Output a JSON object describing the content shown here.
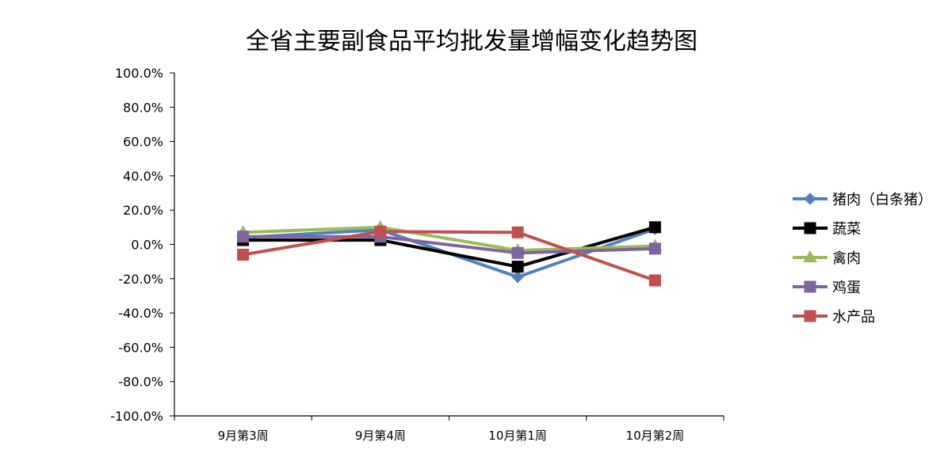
{
  "chart_data": {
    "type": "line",
    "title": "全省主要副食品平均批发量增幅变化趋势图",
    "categories": [
      "9月第3周",
      "9月第4周",
      "10月第1周",
      "10月第2周"
    ],
    "ylim": [
      -100,
      100
    ],
    "ytick_step": 20,
    "ytick_labels": [
      "100.0%",
      "80.0%",
      "60.0%",
      "40.0%",
      "20.0%",
      "0.0%",
      "-20.0%",
      "-40.0%",
      "-60.0%",
      "-80.0%",
      "-100.0%"
    ],
    "y_unit": "%",
    "grid": false,
    "legend_position": "right",
    "series": [
      {
        "name": "猪肉（白条猪）",
        "values": [
          4.0,
          8.5,
          -19.0,
          9.0
        ],
        "color": "#4F81BD",
        "marker": "diamond"
      },
      {
        "name": "蔬菜",
        "values": [
          2.5,
          2.5,
          -13.0,
          10.0
        ],
        "color": "#000000",
        "marker": "square"
      },
      {
        "name": "禽肉",
        "values": [
          7.0,
          10.0,
          -3.5,
          -1.0
        ],
        "color": "#9BBB59",
        "marker": "triangle"
      },
      {
        "name": "鸡蛋",
        "values": [
          4.5,
          4.5,
          -5.0,
          -2.5
        ],
        "color": "#8064A2",
        "marker": "square"
      },
      {
        "name": "水产品",
        "values": [
          -6.0,
          7.5,
          7.0,
          -21.0
        ],
        "color": "#C0504D",
        "marker": "square"
      }
    ]
  }
}
